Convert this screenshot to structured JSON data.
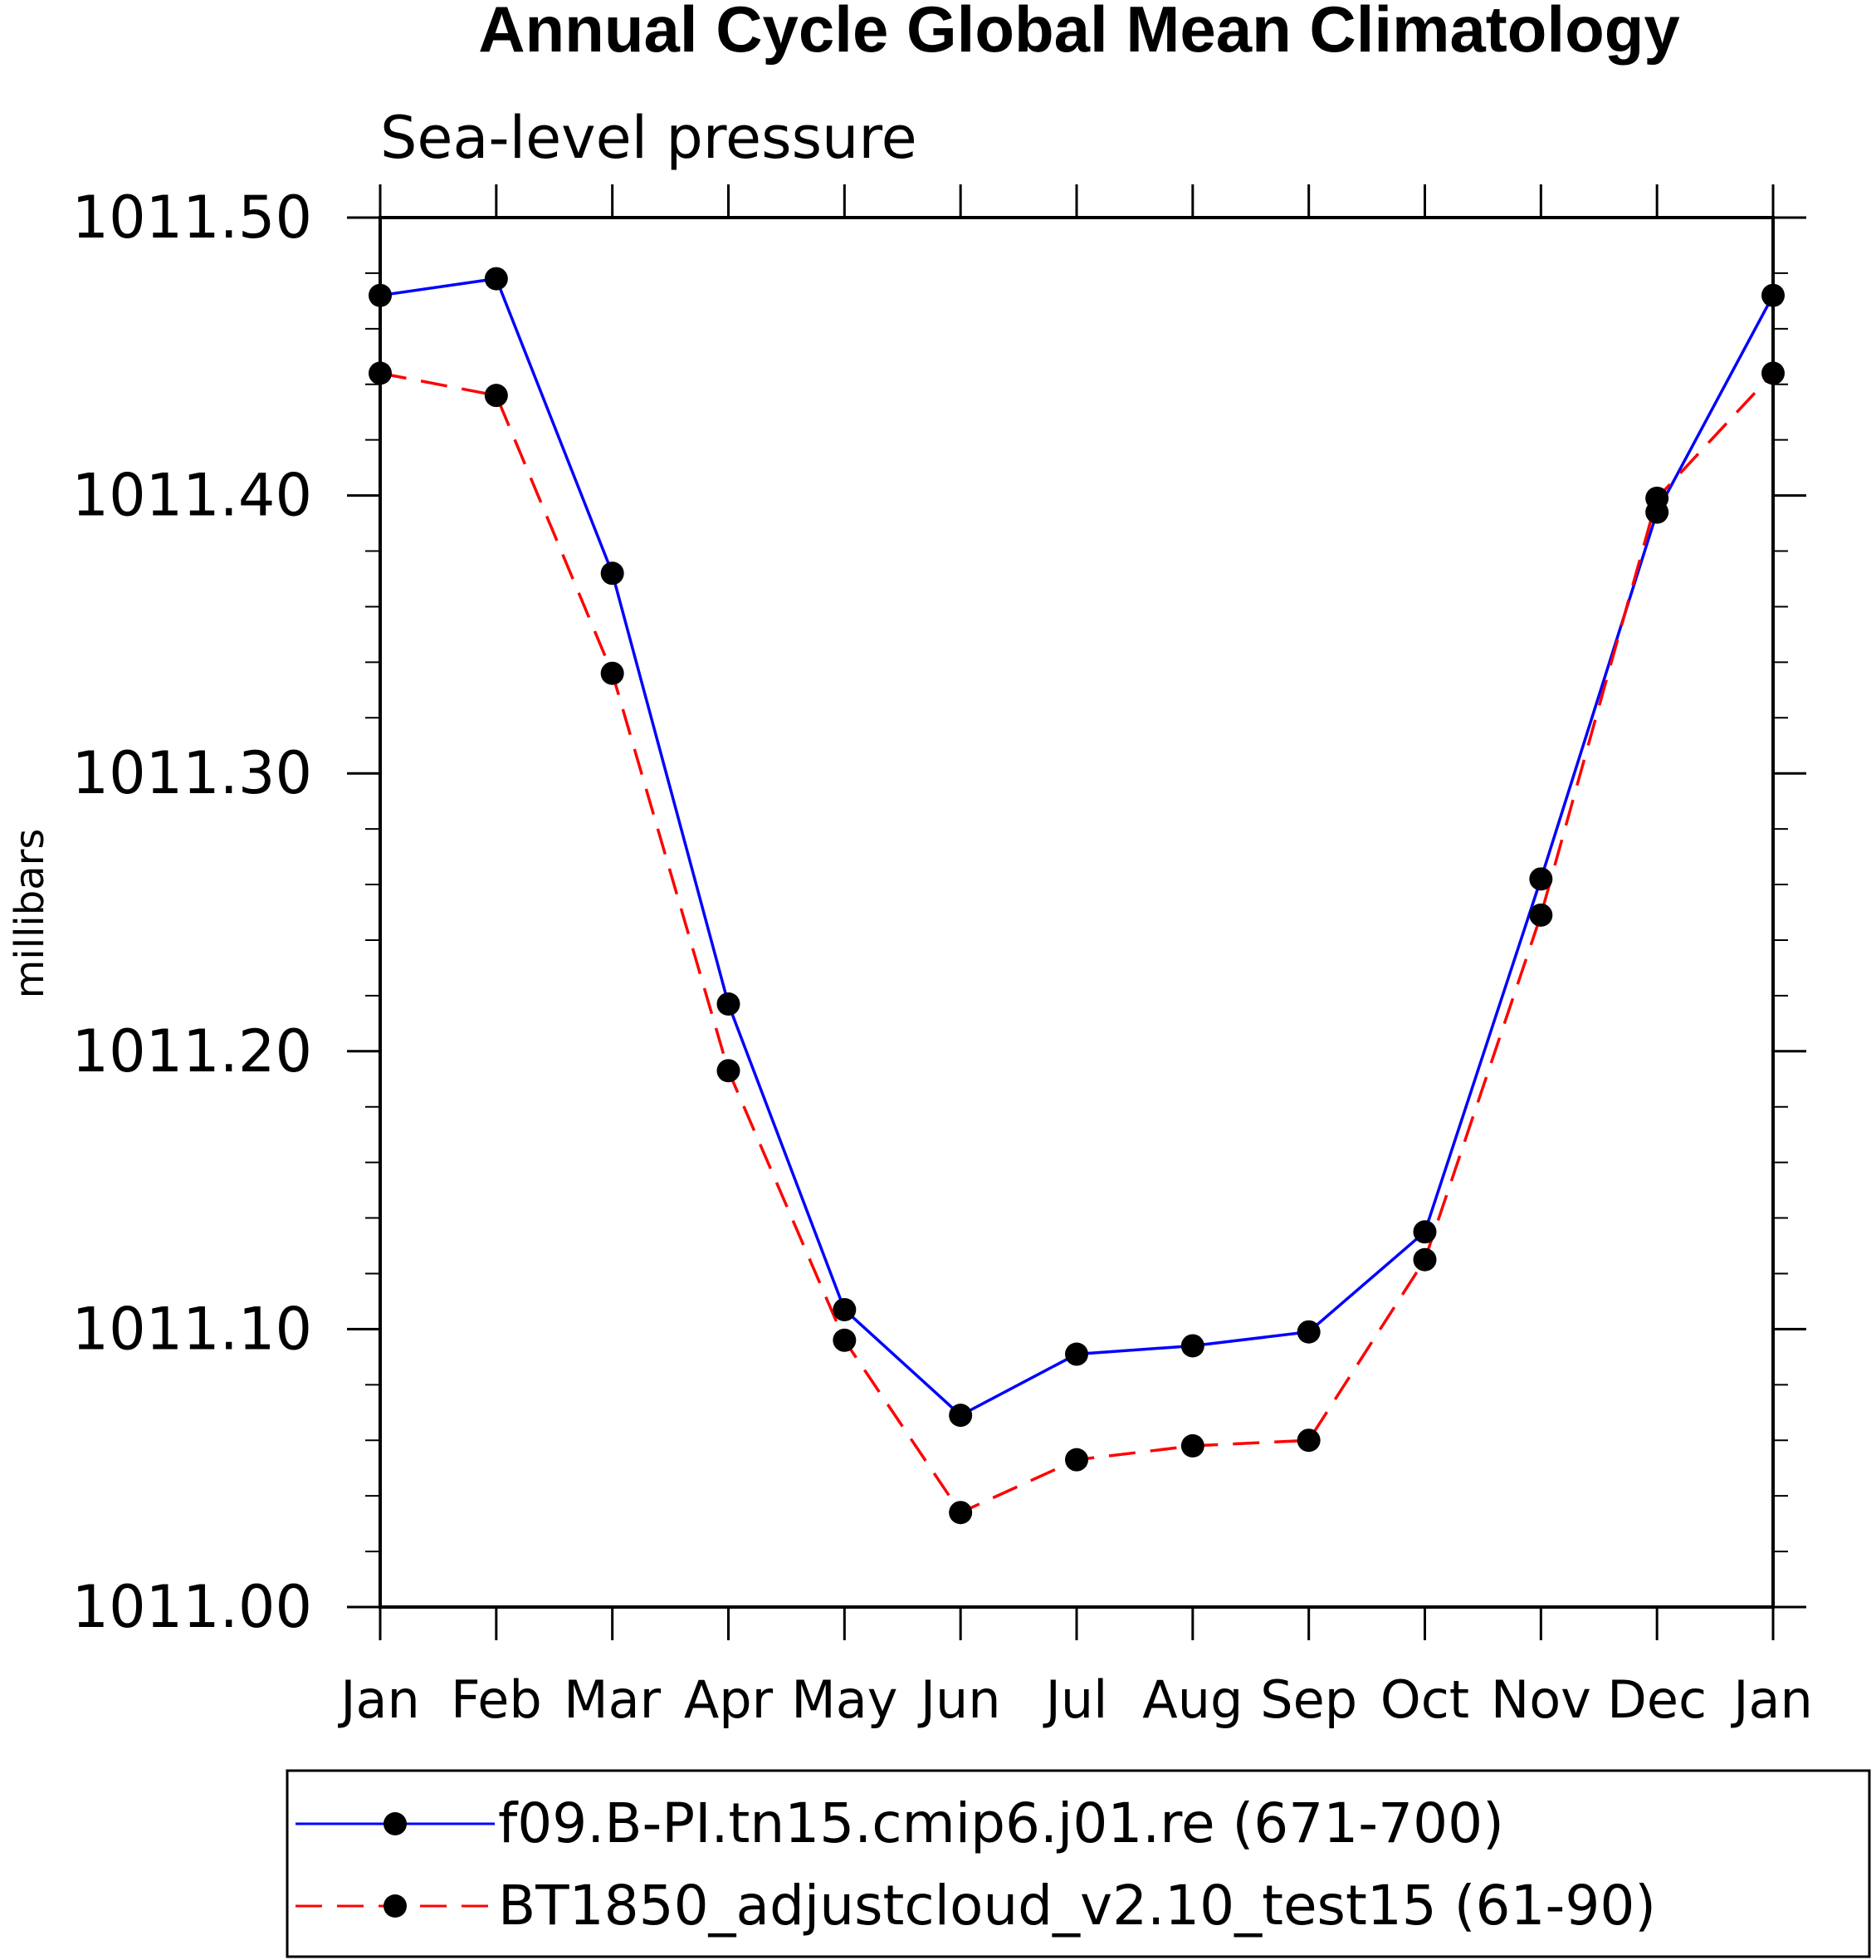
{
  "chart_data": {
    "type": "line",
    "title": "Annual Cycle Global Mean Climatology",
    "subtitle": "Sea-level pressure",
    "ylabel": "millibars",
    "xlabel": "",
    "categories": [
      "Jan",
      "Feb",
      "Mar",
      "Apr",
      "May",
      "Jun",
      "Jul",
      "Aug",
      "Sep",
      "Oct",
      "Nov",
      "Dec",
      "Jan"
    ],
    "ylim": [
      1011.0,
      1011.5
    ],
    "yticks": [
      1011.0,
      1011.1,
      1011.2,
      1011.3,
      1011.4,
      1011.5
    ],
    "ytick_labels": [
      "1011.00",
      "1011.10",
      "1011.20",
      "1011.30",
      "1011.40",
      "1011.50"
    ],
    "y_minor_step": 0.02,
    "grid": false,
    "legend_position": "bottom",
    "series": [
      {
        "name": "f09.B-PI.tn15.cmip6.j01.re (671-700)",
        "color": "#0000ff",
        "line_style": "solid",
        "marker": "filled-circle",
        "values": [
          1011.472,
          1011.478,
          1011.372,
          1011.217,
          1011.107,
          1011.069,
          1011.091,
          1011.094,
          1011.099,
          1011.135,
          1011.262,
          1011.394,
          1011.472
        ]
      },
      {
        "name": "BT1850_adjustcloud_v2.10_test15 (61-90)",
        "color": "#ff0000",
        "line_style": "dashed",
        "marker": "filled-circle",
        "values": [
          1011.444,
          1011.436,
          1011.336,
          1011.193,
          1011.096,
          1011.034,
          1011.053,
          1011.058,
          1011.06,
          1011.125,
          1011.249,
          1011.399,
          1011.444
        ]
      }
    ]
  }
}
